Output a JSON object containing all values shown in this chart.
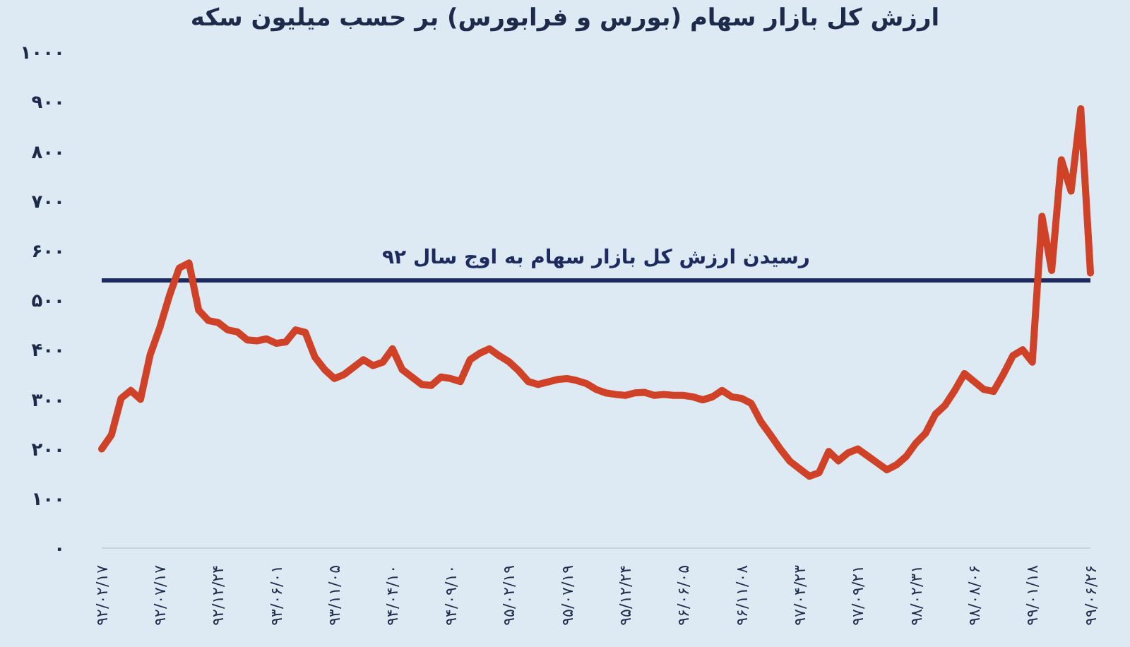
{
  "chart_data": {
    "type": "line",
    "title": "ارزش کل بازار سهام (بورس و فرابورس) بر حسب میلیون سکه",
    "categories": [
      "۹۲/۰۲/۱۷",
      null,
      null,
      null,
      null,
      null,
      "۹۲/۰۷/۱۷",
      null,
      null,
      null,
      null,
      null,
      "۹۲/۱۲/۲۴",
      null,
      null,
      null,
      null,
      null,
      "۹۳/۰۶/۰۱",
      null,
      null,
      null,
      null,
      null,
      "۹۳/۱۱/۰۵",
      null,
      null,
      null,
      null,
      null,
      "۹۴/۰۴/۱۰",
      null,
      null,
      null,
      null,
      null,
      "۹۴/۰۹/۱۰",
      null,
      null,
      null,
      null,
      null,
      "۹۵/۰۲/۱۹",
      null,
      null,
      null,
      null,
      null,
      "۹۵/۰۷/۱۹",
      null,
      null,
      null,
      null,
      null,
      "۹۵/۱۲/۲۴",
      null,
      null,
      null,
      null,
      null,
      "۹۶/۰۶/۰۵",
      null,
      null,
      null,
      null,
      null,
      "۹۶/۱۱/۰۸",
      null,
      null,
      null,
      null,
      null,
      "۹۷/۰۴/۲۳",
      null,
      null,
      null,
      null,
      null,
      "۹۷/۰۹/۲۱",
      null,
      null,
      null,
      null,
      null,
      "۹۸/۰۲/۳۱",
      null,
      null,
      null,
      null,
      null,
      "۹۸/۰۸/۰۶",
      null,
      null,
      null,
      null,
      null,
      "۹۹/۰۱/۱۸",
      null,
      null,
      null,
      null,
      null,
      "۹۹/۰۶/۲۶"
    ],
    "series": [
      {
        "color": "#d04228",
        "values": [
          200,
          228,
          302,
          318,
          300,
          390,
          445,
          510,
          565,
          575,
          480,
          459,
          455,
          440,
          436,
          420,
          418,
          422,
          413,
          416,
          440,
          435,
          385,
          360,
          342,
          350,
          365,
          380,
          368,
          375,
          402,
          360,
          345,
          330,
          328,
          345,
          342,
          336,
          380,
          393,
          402,
          388,
          376,
          358,
          336,
          330,
          335,
          340,
          342,
          338,
          332,
          320,
          313,
          310,
          308,
          313,
          314,
          308,
          310,
          308,
          308,
          305,
          299,
          305,
          318,
          305,
          302,
          292,
          255,
          228,
          200,
          175,
          160,
          145,
          152,
          195,
          176,
          192,
          200,
          186,
          172,
          158,
          168,
          185,
          212,
          232,
          270,
          288,
          318,
          352,
          336,
          320,
          316,
          350,
          388,
          400,
          375,
          669,
          560,
          783,
          720,
          886,
          555
        ]
      }
    ],
    "ylim": [
      0,
      1000
    ],
    "yticks": [
      {
        "value": 0,
        "label": "۰"
      },
      {
        "value": 100,
        "label": "۱۰۰"
      },
      {
        "value": 200,
        "label": "۲۰۰"
      },
      {
        "value": 300,
        "label": "۳۰۰"
      },
      {
        "value": 400,
        "label": "۴۰۰"
      },
      {
        "value": 500,
        "label": "۵۰۰"
      },
      {
        "value": 600,
        "label": "۶۰۰"
      },
      {
        "value": 700,
        "label": "۷۰۰"
      },
      {
        "value": 800,
        "label": "۸۰۰"
      },
      {
        "value": 900,
        "label": "۹۰۰"
      },
      {
        "value": 1000,
        "label": "۱۰۰۰"
      }
    ],
    "ref_lines": [
      {
        "axis": "y",
        "value": 540,
        "label": "رسیدن ارزش کل بازار سهام به اوج سال ۹۲",
        "color": "#1c2a5e"
      }
    ],
    "line_style": "solid"
  }
}
